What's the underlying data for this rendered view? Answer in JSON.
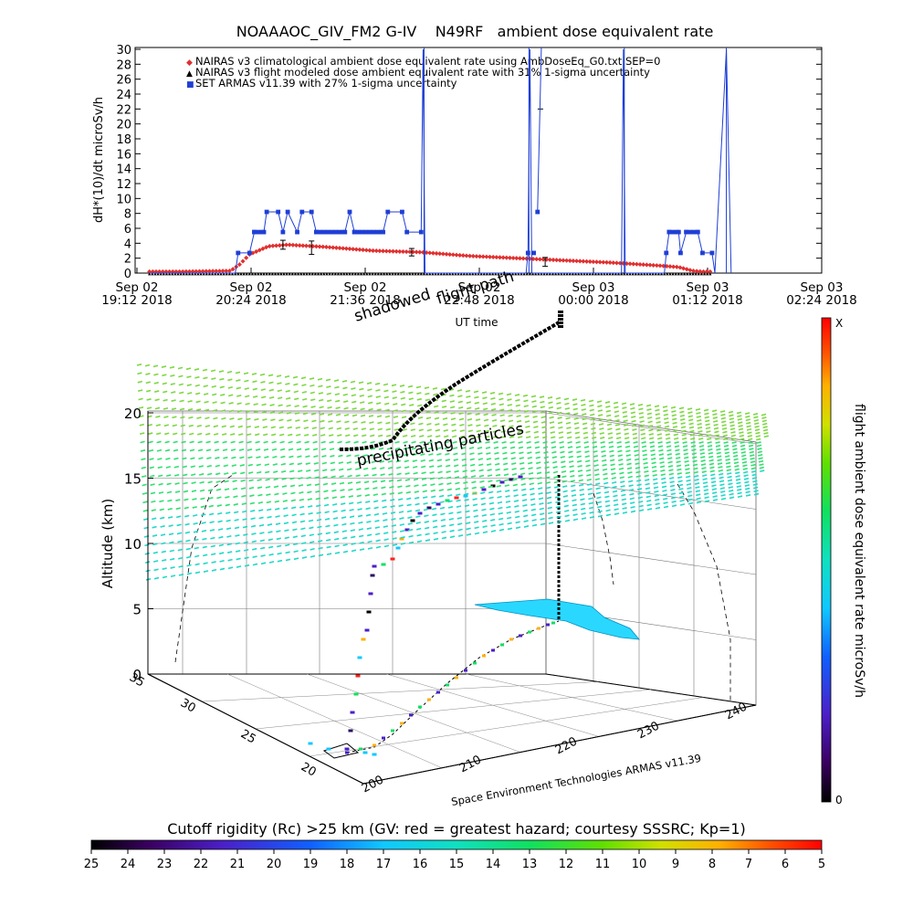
{
  "top_chart": {
    "title": "NOAAAOC_GIV_FM2 G-IV    N49RF   ambient dose equivalent rate",
    "ylabel": "dH*(10)/dt microSv/h",
    "xlabel": "UT time",
    "legend": [
      {
        "symbol": "◆",
        "color": "#e03030",
        "text": "NAIRAS v3 climatological ambient dose equivalent rate using AmbDoseEq_G0.txt SEP=0"
      },
      {
        "symbol": "▲",
        "color": "#000000",
        "text": "NAIRAS v3 flight modeled dose ambient equivalent rate with 31% 1-sigma uncertainty"
      },
      {
        "symbol": "■",
        "color": "#1f3fd6",
        "text": "SET ARMAS v11.39 with 27% 1-sigma uncertainty"
      }
    ],
    "yticks": [
      "0",
      "2",
      "4",
      "6",
      "8",
      "10",
      "12",
      "14",
      "16",
      "18",
      "20",
      "22",
      "24",
      "26",
      "28",
      "30"
    ],
    "xticks": [
      {
        "date": "Sep 02",
        "time": "19:12 2018"
      },
      {
        "date": "Sep 02",
        "time": "20:24 2018"
      },
      {
        "date": "Sep 02",
        "time": "21:36 2018"
      },
      {
        "date": "Sep 02",
        "time": "22:48 2018"
      },
      {
        "date": "Sep 03",
        "time": "00:00 2018"
      },
      {
        "date": "Sep 03",
        "time": "01:12 2018"
      },
      {
        "date": "Sep 03",
        "time": "02:24 2018"
      }
    ]
  },
  "chart_data": {
    "type": "line",
    "x_unit": "UT time (hours from 19:12 Sep 02 2018)",
    "x": [
      0.0,
      0.5,
      1.0,
      1.1,
      1.2,
      1.4,
      1.6,
      2.0,
      2.5,
      3.0,
      3.5,
      4.0,
      4.5,
      5.0,
      5.5,
      5.7,
      5.85,
      5.95,
      6.0
    ],
    "ylim": [
      0,
      30
    ],
    "xlim": [
      0,
      7.2
    ],
    "series": [
      {
        "name": "NAIRAS v3 climatological ambient dose equivalent rate using AmbDoseEq_G0.txt SEP=0",
        "color": "#e03030",
        "values": [
          0.2,
          0.2,
          0.3,
          1.2,
          2.5,
          3.6,
          3.8,
          3.5,
          3.0,
          2.8,
          2.3,
          2.0,
          1.7,
          1.4,
          1.0,
          0.8,
          0.3,
          0.2,
          0.2
        ]
      },
      {
        "name": "NAIRAS v3 flight modeled dose ambient equivalent rate with 31% 1-sigma uncertainty",
        "color": "#000000",
        "values": [
          0.0,
          0.0,
          0.0,
          0.0,
          0.0,
          0.0,
          0.0,
          0.0,
          0.0,
          0.0,
          0.0,
          0.0,
          0.0,
          0.0,
          0.0,
          0.0,
          0.0,
          0.0,
          0.0
        ]
      },
      {
        "name": "SET ARMAS v11.39 with 27% 1-sigma uncertainty",
        "color": "#1f3fd6",
        "values": [
          0.0,
          0.0,
          0.0,
          0.0,
          2.7,
          5.5,
          8.2,
          5.5,
          5.5,
          5.5,
          30.0,
          0.0,
          0.0,
          2.7,
          0.0,
          5.5,
          30.0,
          0.0,
          0.0
        ]
      }
    ]
  },
  "scene": {
    "annotations": {
      "shadowed": "shadowed",
      "flight_path": "flight path",
      "precipitating": "precipitating particles"
    },
    "altitude_label": "Altitude (km)",
    "altitude_ticks": [
      "0",
      "5",
      "10",
      "15",
      "20"
    ],
    "lat_ticks": [
      "20",
      "25",
      "30",
      "35"
    ],
    "lon_ticks": [
      "200",
      "210",
      "220",
      "230",
      "240"
    ],
    "credit": "Space Environment Technologies ARMAS v11.39",
    "vbar_label": "flight ambient dose equivalent rate microSv/h",
    "vbar_top": "X",
    "vbar_bottom": "0"
  },
  "hbar": {
    "title": "Cutoff rigidity (Rc) >25 km (GV: red = greatest hazard; courtesy SSSRC; Kp=1)",
    "ticks": [
      "25",
      "24",
      "23",
      "22",
      "21",
      "20",
      "19",
      "18",
      "17",
      "16",
      "15",
      "14",
      "13",
      "12",
      "11",
      "10",
      "9",
      "8",
      "7",
      "6",
      "5"
    ]
  }
}
